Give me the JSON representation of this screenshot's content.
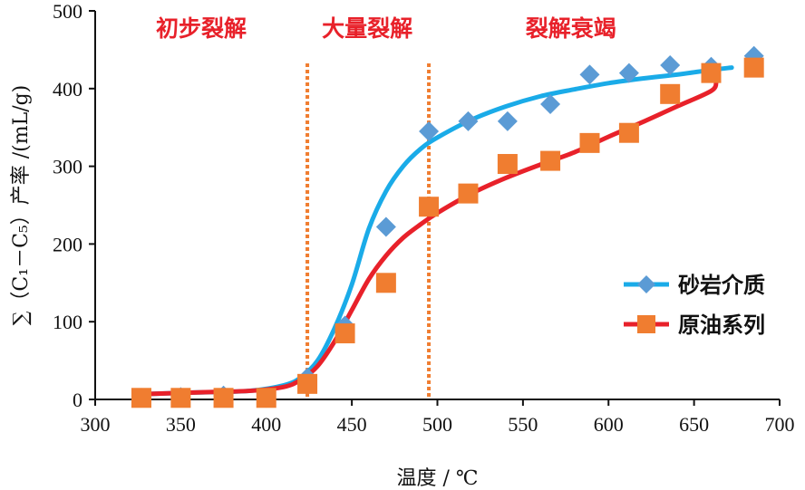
{
  "chart_data": {
    "type": "scatter",
    "title": "",
    "xlabel": "温度 / ℃",
    "ylabel": "∑（C₁－C₅）产率 /(mL/g)",
    "xlim": [
      300,
      700
    ],
    "ylim": [
      0,
      500
    ],
    "xticks": [
      "300",
      "350",
      "400",
      "450",
      "500",
      "550",
      "600",
      "650",
      "700"
    ],
    "yticks": [
      "0",
      "100",
      "200",
      "300",
      "400",
      "500"
    ],
    "grid": false,
    "legend_position": "right-middle",
    "phases": [
      {
        "label": "初步裂解",
        "center_x": 362
      },
      {
        "label": "大量裂解",
        "center_x": 459
      },
      {
        "label": "裂解衰竭",
        "center_x": 578
      }
    ],
    "phase_boundaries": [
      424,
      495
    ],
    "series": [
      {
        "name": "砂岩介质",
        "marker": "diamond",
        "color": "#5B9BD5",
        "line_color": "#1AABE8",
        "x": [
          327,
          350,
          375,
          400,
          424,
          446,
          470,
          495,
          518,
          541,
          566,
          589,
          612,
          636,
          660,
          685
        ],
        "y": [
          2,
          3,
          5,
          2,
          28,
          95,
          222,
          345,
          358,
          358,
          380,
          418,
          420,
          430,
          428,
          442
        ],
        "fit_x": [
          330,
          360,
          390,
          410,
          420,
          430,
          440,
          450,
          460,
          470,
          480,
          490,
          500,
          520,
          540,
          560,
          580,
          600,
          620,
          640,
          660,
          672
        ],
        "fit_y": [
          7,
          9,
          11,
          18,
          28,
          50,
          92,
          148,
          220,
          268,
          300,
          322,
          337,
          360,
          377,
          390,
          399,
          407,
          413,
          418,
          424,
          427
        ]
      },
      {
        "name": "原油系列",
        "marker": "square",
        "color": "#F07D30",
        "line_color": "#E8212A",
        "x": [
          327,
          350,
          375,
          400,
          424,
          446,
          470,
          495,
          518,
          541,
          566,
          589,
          612,
          636,
          660,
          685
        ],
        "y": [
          2,
          2,
          2,
          2,
          20,
          85,
          150,
          248,
          265,
          303,
          307,
          330,
          343,
          393,
          420,
          427
        ],
        "fit_x": [
          330,
          360,
          390,
          410,
          420,
          430,
          440,
          450,
          460,
          470,
          480,
          490,
          500,
          520,
          540,
          560,
          580,
          600,
          620,
          640,
          660,
          663
        ],
        "fit_y": [
          7,
          9,
          11,
          16,
          25,
          43,
          75,
          115,
          155,
          185,
          208,
          225,
          240,
          265,
          285,
          302,
          318,
          338,
          357,
          377,
          397,
          409
        ]
      }
    ]
  }
}
